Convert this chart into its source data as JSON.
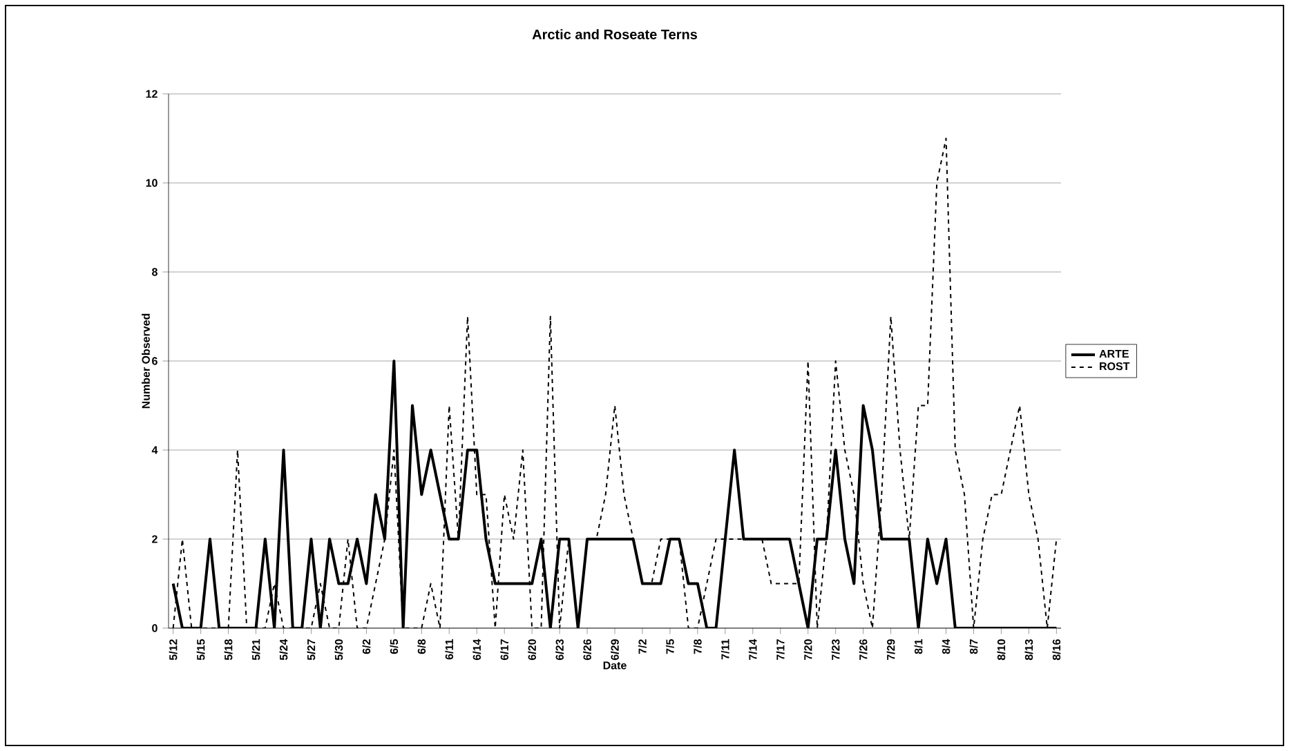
{
  "chart_data": {
    "type": "line",
    "title": "Arctic and Roseate Terns",
    "xlabel": "Date",
    "ylabel": "Number Observed",
    "categories": [
      "5/12",
      null,
      null,
      "5/15",
      null,
      null,
      "5/18",
      null,
      null,
      "5/21",
      null,
      null,
      "5/24",
      null,
      null,
      "5/27",
      null,
      null,
      "5/30",
      null,
      null,
      "6/2",
      null,
      null,
      "6/5",
      null,
      null,
      "6/8",
      null,
      null,
      "6/11",
      null,
      null,
      "6/14",
      null,
      null,
      "6/17",
      null,
      null,
      "6/20",
      null,
      null,
      "6/23",
      null,
      null,
      "6/26",
      null,
      null,
      "6/29",
      null,
      null,
      "7/2",
      null,
      null,
      "7/5",
      null,
      null,
      "7/8",
      null,
      null,
      "7/11",
      null,
      null,
      "7/14",
      null,
      null,
      "7/17",
      null,
      null,
      "7/20",
      null,
      null,
      "7/23",
      null,
      null,
      "7/26",
      null,
      null,
      "7/29",
      null,
      null,
      "8/1",
      null,
      null,
      "8/4",
      null,
      null,
      "8/7",
      null,
      null,
      "8/10",
      null,
      null,
      "8/13",
      null,
      null,
      "8/16"
    ],
    "series": [
      {
        "name": "ARTE",
        "color": "#000000",
        "line_style": "solid",
        "values": [
          1,
          0,
          0,
          0,
          2,
          0,
          0,
          0,
          0,
          0,
          2,
          0,
          4,
          0,
          0,
          2,
          0,
          2,
          1,
          1,
          2,
          1,
          3,
          2,
          6,
          0,
          5,
          3,
          4,
          3,
          2,
          2,
          4,
          4,
          2,
          1,
          1,
          1,
          1,
          1,
          2,
          0,
          2,
          2,
          0,
          2,
          2,
          2,
          2,
          2,
          2,
          1,
          1,
          1,
          2,
          2,
          1,
          1,
          0,
          0,
          2,
          4,
          2,
          2,
          2,
          2,
          2,
          2,
          1,
          0,
          2,
          2,
          4,
          2,
          1,
          5,
          4,
          2,
          2,
          2,
          2,
          0,
          2,
          1,
          2,
          0,
          0,
          0,
          0,
          0,
          0,
          0,
          0,
          0,
          0,
          0,
          0
        ]
      },
      {
        "name": "ROST",
        "color": "#000000",
        "line_style": "dashed",
        "values": [
          0,
          2,
          0,
          0,
          0,
          0,
          0,
          4,
          0,
          0,
          0,
          1,
          0,
          0,
          0,
          0,
          1,
          0,
          0,
          2,
          0,
          0,
          1,
          2,
          4,
          0,
          0,
          0,
          1,
          0,
          5,
          2,
          7,
          3,
          3,
          0,
          3,
          2,
          4,
          0,
          0,
          7,
          0,
          2,
          0,
          2,
          2,
          3,
          5,
          3,
          2,
          1,
          1,
          2,
          2,
          2,
          0,
          0,
          1,
          2,
          2,
          2,
          2,
          2,
          2,
          1,
          1,
          1,
          1,
          6,
          0,
          2,
          6,
          4,
          3,
          1,
          0,
          3,
          7,
          4,
          2,
          5,
          5,
          10,
          11,
          4,
          3,
          0,
          2,
          3,
          3,
          4,
          5,
          3,
          2,
          0,
          2
        ]
      }
    ],
    "ylim": [
      0,
      12
    ],
    "yticks": [
      0,
      2,
      4,
      6,
      8,
      10,
      12
    ],
    "grid": "y",
    "legend": "right",
    "marker": "none"
  }
}
